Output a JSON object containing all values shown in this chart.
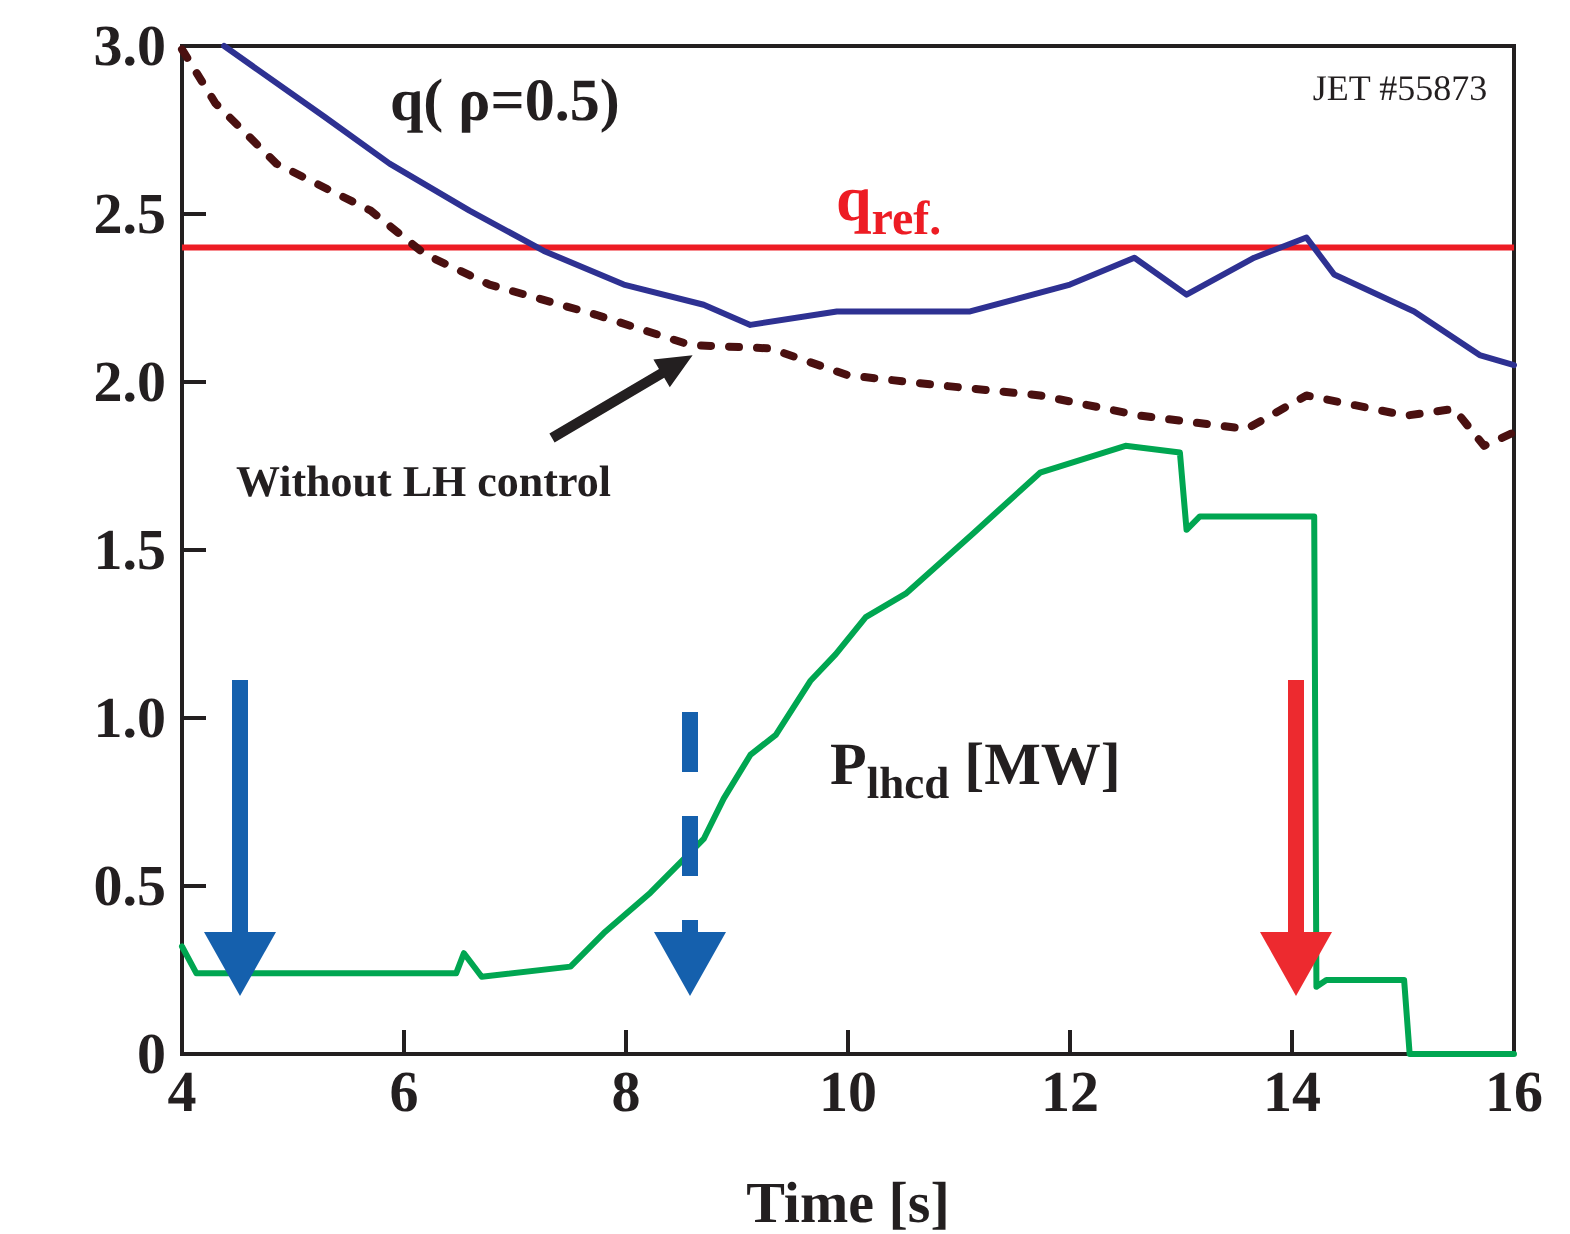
{
  "chart_data": {
    "type": "line",
    "xlabel": "Time [s]",
    "xlim": [
      4,
      16
    ],
    "xticks": [
      4,
      6,
      8,
      10,
      12,
      14,
      16
    ],
    "ylim": [
      0,
      3
    ],
    "yticks": [
      0,
      {
        "value": 0.5,
        "label": "0.5"
      },
      {
        "value": 1,
        "label": "1.0"
      },
      {
        "value": 1.5,
        "label": "1.5"
      },
      {
        "value": 2,
        "label": "2.0"
      },
      {
        "value": 2.5,
        "label": "2.5"
      },
      {
        "value": 3,
        "label": "3.0"
      }
    ],
    "grid": false,
    "series": [
      {
        "name": "q( ρ=0.5)",
        "color": "#2e3192",
        "line_style": "solid",
        "x": [
          4.38,
          5.28,
          5.87,
          6.59,
          7.26,
          7.98,
          8.7,
          9.12,
          9.9,
          11.1,
          12.0,
          12.58,
          13.05,
          13.66,
          14.13,
          14.38,
          15.1,
          15.69,
          16.0
        ],
        "values": [
          3.0,
          2.79,
          2.65,
          2.51,
          2.39,
          2.29,
          2.23,
          2.17,
          2.21,
          2.21,
          2.29,
          2.37,
          2.26,
          2.37,
          2.43,
          2.32,
          2.21,
          2.08,
          2.05
        ]
      },
      {
        "color": "#4a1010",
        "line_style": "dotted",
        "x": [
          4.0,
          4.3,
          4.85,
          5.7,
          6.19,
          6.77,
          7.73,
          8.58,
          9.3,
          10.0,
          10.83,
          11.73,
          12.63,
          13.59,
          14.13,
          15.03,
          15.46,
          15.73,
          16.0
        ],
        "values": [
          2.99,
          2.83,
          2.65,
          2.51,
          2.38,
          2.29,
          2.2,
          2.11,
          2.1,
          2.02,
          1.99,
          1.96,
          1.9,
          1.86,
          1.96,
          1.9,
          1.92,
          1.81,
          1.85
        ]
      },
      {
        "name": "P$_{lhcd}$ [MW]",
        "color": "#00a651",
        "line_style": "solid",
        "x": [
          4.0,
          4.13,
          6.47,
          6.54,
          6.7,
          7.5,
          7.8,
          8.22,
          8.52,
          8.7,
          8.88,
          9.12,
          9.35,
          9.66,
          9.89,
          10.16,
          10.52,
          11.13,
          11.73,
          12.5,
          12.99,
          13.05,
          13.17,
          14.2,
          14.22,
          14.31,
          15.01,
          15.06,
          16.0
        ],
        "values": [
          0.32,
          0.24,
          0.24,
          0.3,
          0.23,
          0.26,
          0.36,
          0.48,
          0.58,
          0.64,
          0.76,
          0.89,
          0.95,
          1.11,
          1.19,
          1.3,
          1.37,
          1.55,
          1.73,
          1.81,
          1.79,
          1.56,
          1.6,
          1.6,
          0.2,
          0.22,
          0.22,
          0,
          0
        ]
      }
    ],
    "ref_lines": [
      {
        "axis": "y",
        "value": 2.4,
        "label": "q$_{ref.}$",
        "color": "#ed1c24"
      }
    ],
    "annotations": [
      {
        "text": "Without LH control",
        "x": 8.6,
        "y": 2.08
      },
      "JET #55873"
    ]
  }
}
